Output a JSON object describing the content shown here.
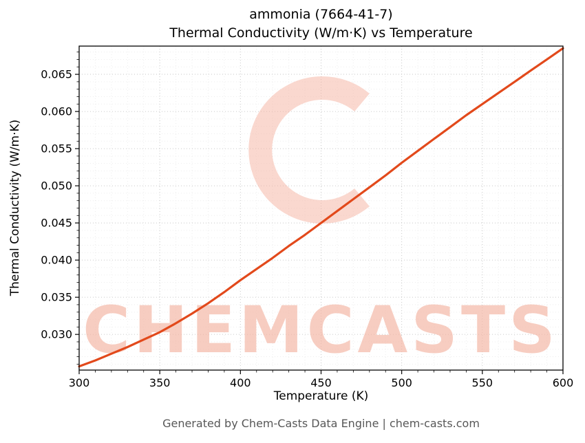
{
  "chart_data": {
    "type": "line",
    "title_line1": "ammonia (7664-41-7)",
    "title_line2": "Thermal Conductivity (W/m·K) vs Temperature",
    "xlabel": "Temperature (K)",
    "ylabel": "Thermal Conductivity (W/m·K)",
    "xlim": [
      300,
      600
    ],
    "ylim": [
      0.0252,
      0.0688
    ],
    "xticks": [
      300,
      350,
      400,
      450,
      500,
      550,
      600
    ],
    "ytick_values": [
      0.03,
      0.035,
      0.04,
      0.045,
      0.05,
      0.055,
      0.06,
      0.065
    ],
    "ytick_labels": [
      "0.030",
      "0.035",
      "0.040",
      "0.045",
      "0.050",
      "0.055",
      "0.060",
      "0.065"
    ],
    "grid": true,
    "legend_position": "none",
    "series_name": "Thermal Conductivity",
    "x": [
      300,
      310,
      320,
      330,
      340,
      350,
      360,
      370,
      380,
      390,
      400,
      410,
      420,
      430,
      440,
      450,
      460,
      470,
      480,
      490,
      500,
      510,
      520,
      530,
      540,
      550,
      560,
      570,
      580,
      590,
      600
    ],
    "y": [
      0.0257,
      0.0265,
      0.0274,
      0.0283,
      0.0293,
      0.0303,
      0.0315,
      0.0328,
      0.0342,
      0.0357,
      0.0373,
      0.0388,
      0.0403,
      0.0419,
      0.0434,
      0.045,
      0.0466,
      0.0482,
      0.0498,
      0.0514,
      0.0531,
      0.0547,
      0.0563,
      0.0579,
      0.0595,
      0.061,
      0.0625,
      0.064,
      0.0655,
      0.067,
      0.0685
    ],
    "line_color": "#e2491b",
    "watermark_text": "CHEMCASTS",
    "watermark_color": "#f5b8a7"
  },
  "footer": {
    "text": "Generated by Chem-Casts Data Engine | chem-casts.com"
  }
}
